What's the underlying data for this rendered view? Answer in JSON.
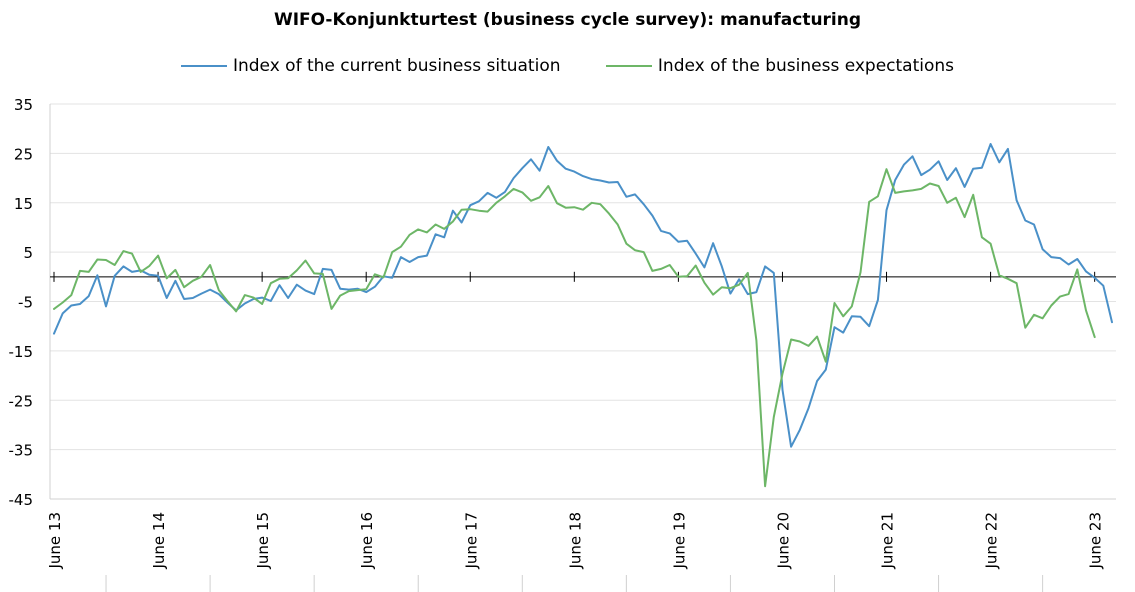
{
  "chart_data": {
    "type": "line",
    "title": "WIFO-Konjunkturtest (business cycle survey): manufacturing",
    "xlabel": "",
    "ylabel": "",
    "ylim": [
      -45,
      35
    ],
    "yticks": [
      35,
      25,
      15,
      5,
      -5,
      -15,
      -25,
      -35,
      -45
    ],
    "x_start": "June 13",
    "x_end": "June 23",
    "x_tick_labels": [
      "June 13",
      "June 14",
      "June 15",
      "June 16",
      "June 17",
      "June 18",
      "June 19",
      "June 20",
      "June 21",
      "June 22",
      "June 23"
    ],
    "grid": "horizontal",
    "legend_position": "top",
    "series": [
      {
        "name": "Index of the current business situation",
        "color": "#4A90C8",
        "values": [
          -11.5,
          -7.4,
          -5.8,
          -5.5,
          -3.9,
          0.3,
          -6.0,
          0.2,
          2.1,
          1.0,
          1.3,
          0.4,
          0.2,
          -4.3,
          -0.8,
          -4.5,
          -4.3,
          -3.4,
          -2.6,
          -3.5,
          -5.2,
          -6.8,
          -5.4,
          -4.5,
          -4.2,
          -4.9,
          -1.7,
          -4.3,
          -1.6,
          -2.8,
          -3.5,
          1.6,
          1.4,
          -2.4,
          -2.6,
          -2.4,
          -3.1,
          -2.0,
          0.1,
          -0.2,
          4.0,
          3.0,
          4.0,
          4.3,
          8.6,
          8.0,
          13.4,
          11.0,
          14.5,
          15.3,
          17.0,
          16.0,
          17.2,
          20.0,
          22.0,
          23.8,
          21.5,
          26.3,
          23.5,
          21.9,
          21.3,
          20.4,
          19.8,
          19.5,
          19.1,
          19.2,
          16.2,
          16.7,
          14.7,
          12.4,
          9.3,
          8.8,
          7.1,
          7.3,
          4.7,
          1.9,
          6.8,
          2.1,
          -3.4,
          -0.5,
          -3.5,
          -3.1,
          2.1,
          0.8,
          -22.9,
          -34.4,
          -31.0,
          -26.6,
          -21.1,
          -18.8,
          -10.2,
          -11.3,
          -8.0,
          -8.1,
          -10.0,
          -4.7,
          13.5,
          19.6,
          22.7,
          24.4,
          20.6,
          21.7,
          23.4,
          19.6,
          22.0,
          18.2,
          21.9,
          22.1,
          26.9,
          23.2,
          25.9,
          15.5,
          11.4,
          10.6,
          5.6,
          4.0,
          3.8,
          2.5,
          3.6,
          1.1,
          -0.2,
          -1.8,
          -9.2
        ]
      },
      {
        "name": "Index of the business expectations",
        "color": "#6DB667",
        "values": [
          -6.5,
          -5.2,
          -3.7,
          1.2,
          1.0,
          3.5,
          3.4,
          2.4,
          5.2,
          4.7,
          1.0,
          2.2,
          4.3,
          -0.3,
          1.4,
          -2.1,
          -0.8,
          0.0,
          2.4,
          -2.7,
          -4.9,
          -7.0,
          -3.7,
          -4.2,
          -5.5,
          -1.3,
          -0.4,
          -0.3,
          1.3,
          3.3,
          0.7,
          0.6,
          -6.5,
          -3.8,
          -2.9,
          -2.7,
          -2.5,
          0.5,
          -0.1,
          5.0,
          6.1,
          8.5,
          9.6,
          9.0,
          10.6,
          9.7,
          11.2,
          13.6,
          13.7,
          13.4,
          13.2,
          15.0,
          16.3,
          17.8,
          17.1,
          15.4,
          16.1,
          18.4,
          14.9,
          14.0,
          14.1,
          13.6,
          15.0,
          14.7,
          12.8,
          10.6,
          6.7,
          5.4,
          5.0,
          1.2,
          1.6,
          2.4,
          0.0,
          0.1,
          2.3,
          -1.2,
          -3.6,
          -2.1,
          -2.3,
          -1.6,
          0.8,
          -12.9,
          -42.4,
          -28.4,
          -19.6,
          -12.7,
          -13.1,
          -14.0,
          -12.1,
          -17.2,
          -5.3,
          -8.0,
          -6.0,
          0.9,
          15.2,
          16.3,
          21.8,
          17.0,
          17.3,
          17.5,
          17.8,
          18.9,
          18.4,
          15.0,
          16.0,
          12.1,
          16.6,
          8.0,
          6.7,
          0.3,
          -0.4,
          -1.3,
          -10.3,
          -7.7,
          -8.4,
          -5.8,
          -4.0,
          -3.5,
          1.5,
          -6.8,
          -12.2
        ]
      }
    ]
  }
}
